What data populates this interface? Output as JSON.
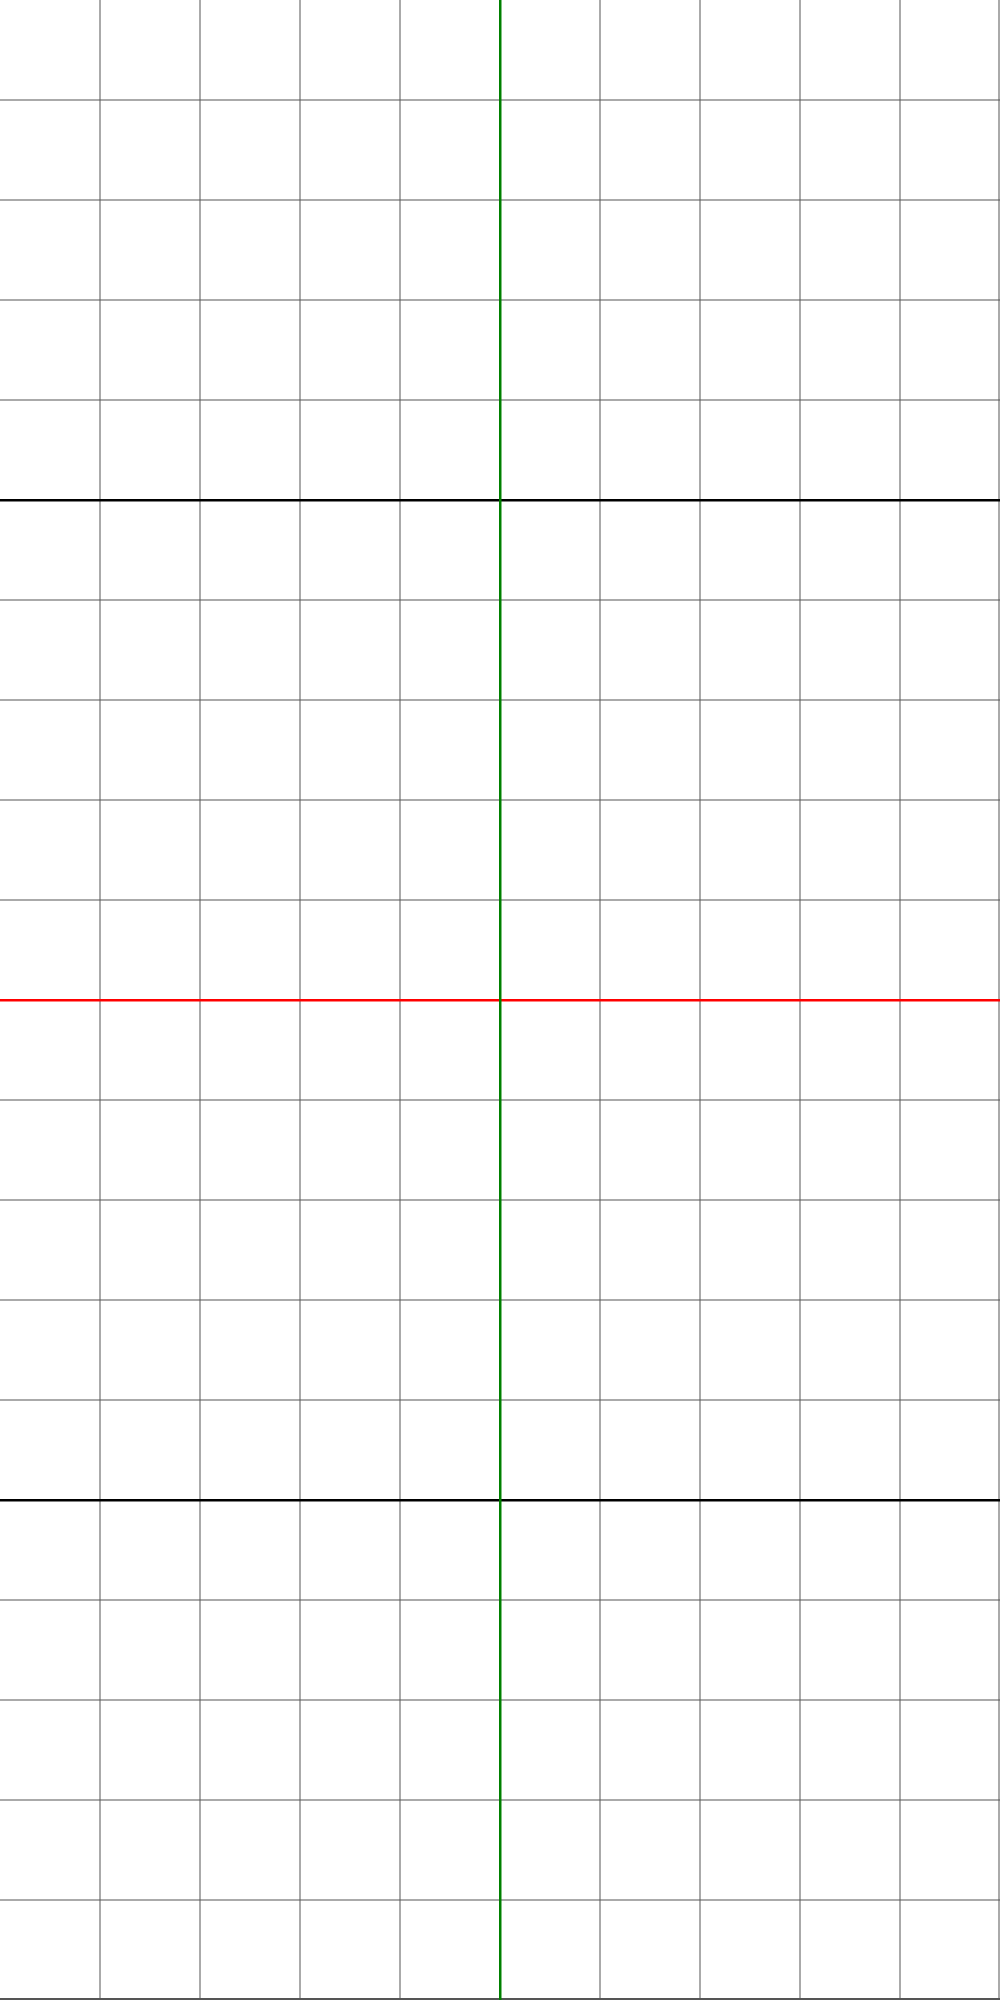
{
  "grid": {
    "columns": 10,
    "rows": 20,
    "major_row_every": 5,
    "background_color": "#ffffff",
    "minor_line_color": "#555555",
    "major_line_color": "#000000",
    "center_vertical_line_color": "#008000",
    "center_horizontal_line_color": "#ff0000"
  }
}
